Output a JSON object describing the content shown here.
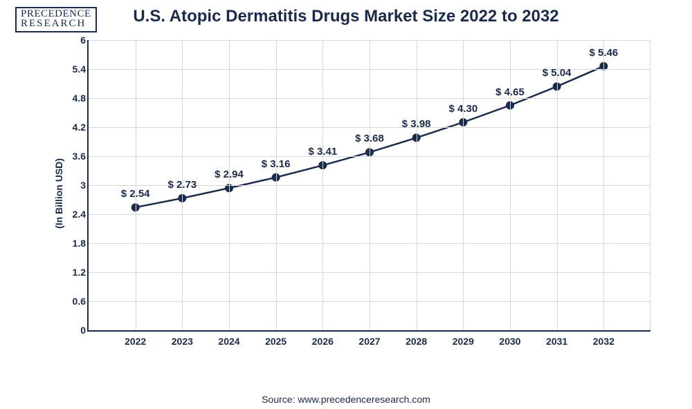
{
  "logo": {
    "line1": "PRECEDENCE",
    "line2": "RESEARCH"
  },
  "chart": {
    "type": "line",
    "title": "U.S. Atopic Dermatitis Drugs Market Size 2022 to 2032",
    "y_axis_label": "(In Billion USD)",
    "source": "Source: www.precedenceresearch.com",
    "ylim": [
      0,
      6
    ],
    "ytick_step": 0.6,
    "y_ticks": [
      "0",
      "0.6",
      "1.2",
      "1.8",
      "2.4",
      "3",
      "3.6",
      "4.2",
      "4.8",
      "5.4",
      "6"
    ],
    "categories": [
      "2022",
      "2023",
      "2024",
      "2025",
      "2026",
      "2027",
      "2028",
      "2029",
      "2030",
      "2031",
      "2032"
    ],
    "values": [
      2.54,
      2.73,
      2.94,
      3.16,
      3.41,
      3.68,
      3.98,
      4.3,
      4.65,
      5.04,
      5.46
    ],
    "data_labels": [
      "$ 2.54",
      "$ 2.73",
      "$ 2.94",
      "$ 3.16",
      "$ 3.41",
      "$ 3.68",
      "$ 3.98",
      "$ 4.30",
      "$ 4.65",
      "$ 5.04",
      "$ 5.46"
    ],
    "line_color": "#1a2a4a",
    "marker_fill": "#1a2a4a",
    "marker_size": 6,
    "line_width": 2.5,
    "grid_color": "#d6d8dd",
    "axis_color": "#1a2a4a",
    "background_color": "#ffffff",
    "title_fontsize": 24,
    "label_fontsize": 14,
    "datalabel_fontsize": 15
  }
}
